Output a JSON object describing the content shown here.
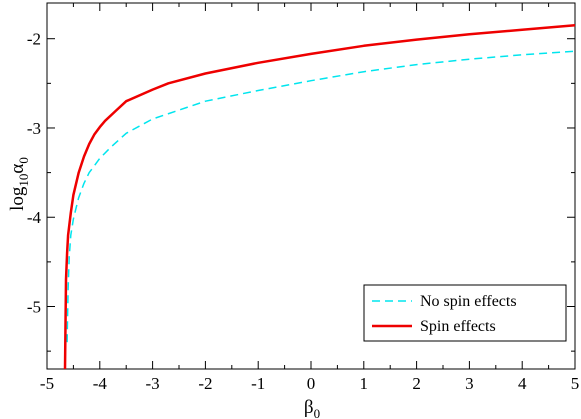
{
  "chart_data": {
    "type": "line",
    "xlabel": {
      "base": "β",
      "sub": "0"
    },
    "ylabel": {
      "base": "log",
      "sub1": "10",
      "mid": "α",
      "sub2": "0"
    },
    "xlim": [
      -5,
      5
    ],
    "ylim": [
      -5.7,
      -1.6
    ],
    "x_ticks": [
      -5,
      -4,
      -3,
      -2,
      -1,
      0,
      1,
      2,
      3,
      4,
      5
    ],
    "x_tick_labels": [
      "-5",
      "-4",
      "-3",
      "-2",
      "-1",
      "0",
      "1",
      "2",
      "3",
      "4",
      "5"
    ],
    "y_ticks": [
      -5,
      -4,
      -3,
      -2
    ],
    "y_tick_labels": [
      "-5",
      "-4",
      "-3",
      "-2"
    ],
    "grid": false,
    "legend_position": "bottom-right",
    "series": [
      {
        "name": "No spin effects",
        "color": "#00e5ee",
        "style": "dashed",
        "x": [
          -4.62,
          -4.6,
          -4.58,
          -4.55,
          -4.5,
          -4.45,
          -4.4,
          -4.3,
          -4.2,
          -4.1,
          -4.0,
          -3.8,
          -3.5,
          -3.0,
          -2.5,
          -2.0,
          -1.0,
          0.0,
          1.0,
          2.0,
          3.0,
          4.0,
          5.0
        ],
        "values": [
          -5.4,
          -4.8,
          -4.45,
          -4.2,
          -4.02,
          -3.9,
          -3.78,
          -3.62,
          -3.5,
          -3.42,
          -3.34,
          -3.22,
          -3.06,
          -2.9,
          -2.8,
          -2.7,
          -2.58,
          -2.47,
          -2.37,
          -2.29,
          -2.23,
          -2.18,
          -2.14
        ]
      },
      {
        "name": "Spin effects",
        "color": "#ee0000",
        "style": "solid",
        "x": [
          -4.66,
          -4.65,
          -4.64,
          -4.62,
          -4.6,
          -4.55,
          -4.5,
          -4.4,
          -4.3,
          -4.2,
          -4.1,
          -4.0,
          -3.9,
          -3.7,
          -3.5,
          -3.0,
          -2.7,
          -2.0,
          -1.0,
          0.0,
          1.0,
          2.0,
          3.0,
          4.0,
          5.0
        ],
        "values": [
          -5.7,
          -5.2,
          -4.7,
          -4.4,
          -4.2,
          -3.95,
          -3.75,
          -3.5,
          -3.32,
          -3.18,
          -3.07,
          -2.99,
          -2.92,
          -2.81,
          -2.7,
          -2.57,
          -2.5,
          -2.39,
          -2.27,
          -2.17,
          -2.08,
          -2.01,
          -1.95,
          -1.9,
          -1.85
        ]
      }
    ]
  }
}
